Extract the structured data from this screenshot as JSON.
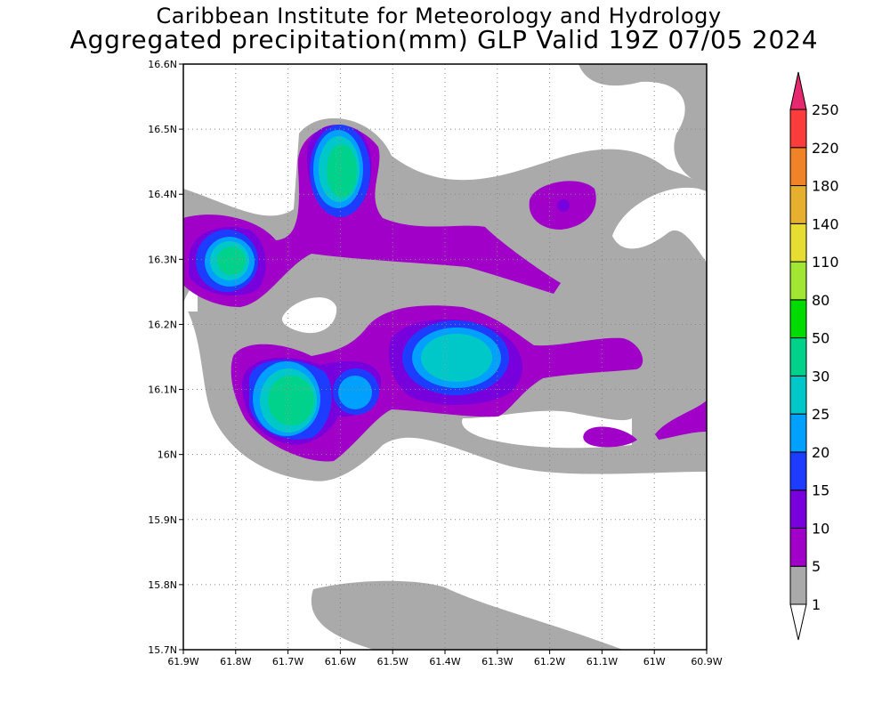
{
  "title": {
    "line1": "Caribbean Institute for Meteorology and Hydrology",
    "line2": "Aggregated precipitation(mm) GLP Valid 19Z 07/05 2024"
  },
  "map": {
    "lon_ticks": [
      "61.9W",
      "61.8W",
      "61.7W",
      "61.6W",
      "61.5W",
      "61.4W",
      "61.3W",
      "61.2W",
      "61.1W",
      "61W",
      "60.9W"
    ],
    "lat_ticks": [
      "16.6N",
      "16.5N",
      "16.4N",
      "16.3N",
      "16.2N",
      "16.1N",
      "16N",
      "15.9N",
      "15.8N",
      "15.7N"
    ]
  },
  "legend": {
    "levels": [
      "1",
      "5",
      "10",
      "15",
      "20",
      "25",
      "30",
      "50",
      "80",
      "110",
      "140",
      "180",
      "220",
      "250"
    ],
    "colors": [
      "#ffffff",
      "#aaaaaa",
      "#a000c8",
      "#7800dc",
      "#1e3cff",
      "#00a0ff",
      "#00c8c8",
      "#00d28c",
      "#00dc00",
      "#a0e632",
      "#e6dc32",
      "#e6af2d",
      "#f08228",
      "#fa3c3c",
      "#e6286e"
    ]
  },
  "colors": {
    "gray": "#aaaaaa",
    "purple": "#a000c8",
    "violet": "#7800dc",
    "blue": "#1e3cff",
    "lightblue": "#00a0ff",
    "cyan": "#00c8c8",
    "teal": "#00d28c"
  }
}
